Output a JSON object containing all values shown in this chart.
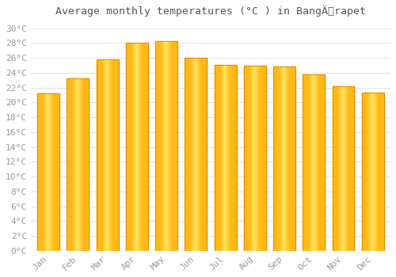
{
  "title": "Average monthly temperatures (°C ) in BangÄrapet",
  "months": [
    "Jan",
    "Feb",
    "Mar",
    "Apr",
    "May",
    "Jun",
    "Jul",
    "Aug",
    "Sep",
    "Oct",
    "Nov",
    "Dec"
  ],
  "values": [
    21.2,
    23.2,
    25.8,
    28.0,
    28.3,
    26.0,
    25.1,
    24.9,
    24.8,
    23.8,
    22.2,
    21.3
  ],
  "bar_color_face": "#FFBB00",
  "bar_color_edge": "#E08000",
  "background_color": "#FFFFFF",
  "plot_bg_color": "#FFFFFF",
  "grid_color": "#DDDDDD",
  "title_fontsize": 9.5,
  "tick_fontsize": 8,
  "tick_color": "#999999",
  "title_color": "#555555",
  "ylim": [
    0,
    31
  ],
  "yticks": [
    0,
    2,
    4,
    6,
    8,
    10,
    12,
    14,
    16,
    18,
    20,
    22,
    24,
    26,
    28,
    30
  ],
  "bar_width": 0.75
}
